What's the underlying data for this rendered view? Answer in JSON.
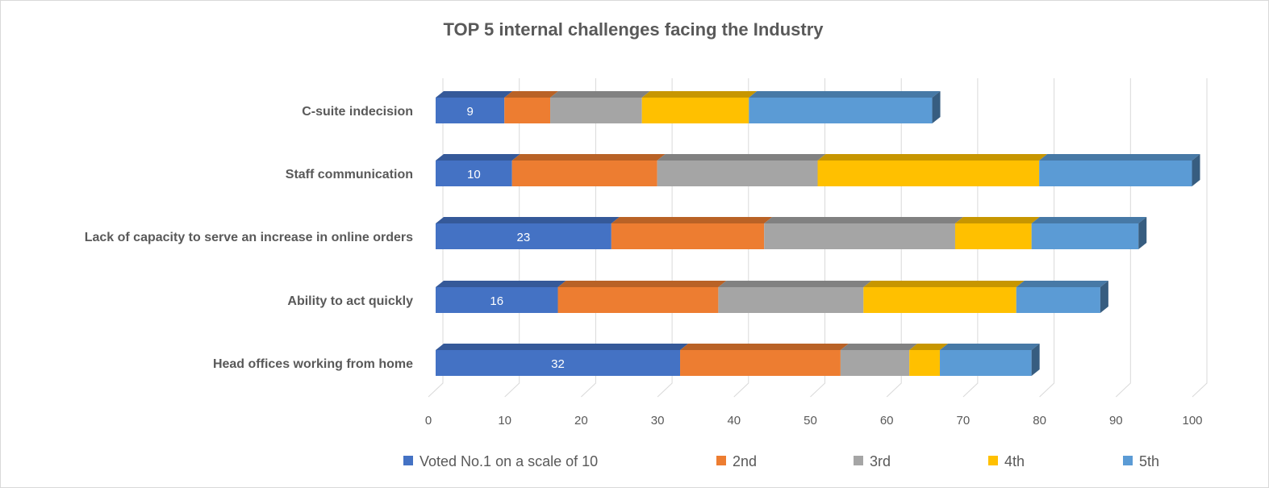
{
  "chart_data": {
    "type": "bar",
    "orientation": "horizontal",
    "stacked": true,
    "three_d": true,
    "title": "TOP 5 internal challenges facing the Industry",
    "xlabel": "",
    "ylabel": "",
    "xlim": [
      0,
      100
    ],
    "x_ticks": [
      "0",
      "10",
      "20",
      "30",
      "40",
      "50",
      "60",
      "70",
      "80",
      "90",
      "100"
    ],
    "grid": true,
    "legend_position": "bottom",
    "categories": [
      "C-suite indecision",
      "Staff communication",
      "Lack of capacity to serve an increase in online orders",
      "Ability to act quickly",
      "Head offices working from home"
    ],
    "series": [
      {
        "name": "Voted No.1 on a scale of 10",
        "color": "#4472C4",
        "values": [
          9,
          10,
          23,
          16,
          32
        ],
        "data_labels": [
          "9",
          "10",
          "23",
          "16",
          "32"
        ]
      },
      {
        "name": "2nd",
        "color": "#ED7D31",
        "values": [
          6,
          19,
          20,
          21,
          21
        ]
      },
      {
        "name": "3rd",
        "color": "#A5A5A5",
        "values": [
          12,
          21,
          25,
          19,
          9
        ]
      },
      {
        "name": "4th",
        "color": "#FFC000",
        "values": [
          14,
          29,
          10,
          20,
          4
        ]
      },
      {
        "name": "5th",
        "color": "#5B9BD5",
        "values": [
          24,
          20,
          14,
          11,
          12
        ]
      }
    ]
  }
}
